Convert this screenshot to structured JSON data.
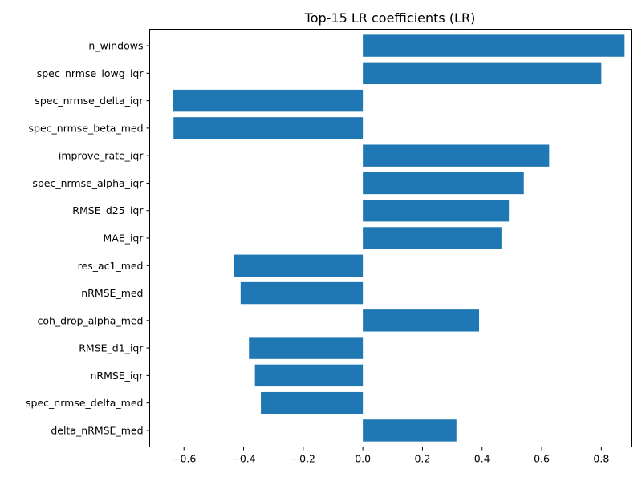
{
  "chart_data": {
    "type": "bar",
    "orientation": "horizontal",
    "title": "Top-15 LR coefficients (LR)",
    "xlabel": "",
    "ylabel": "",
    "categories": [
      "n_windows",
      "spec_nrmse_lowg_iqr",
      "spec_nrmse_delta_iqr",
      "spec_nrmse_beta_med",
      "improve_rate_iqr",
      "spec_nrmse_alpha_iqr",
      "RMSE_d25_iqr",
      "MAE_iqr",
      "res_ac1_med",
      "nRMSE_med",
      "coh_drop_alpha_med",
      "RMSE_d1_iqr",
      "nRMSE_iqr",
      "spec_nrmse_delta_med",
      "delta_nRMSE_med"
    ],
    "values": [
      0.878,
      0.8,
      -0.638,
      -0.635,
      0.625,
      0.54,
      0.49,
      0.465,
      -0.432,
      -0.41,
      0.39,
      -0.382,
      -0.362,
      -0.342,
      0.314
    ],
    "xlim": [
      -0.715,
      0.9
    ],
    "xticks": [
      -0.6,
      -0.4,
      -0.2,
      0.0,
      0.2,
      0.4,
      0.6,
      0.8
    ],
    "xtick_labels": [
      "−0.6",
      "−0.4",
      "−0.2",
      "0.0",
      "0.2",
      "0.4",
      "0.6",
      "0.8"
    ],
    "grid": false,
    "bar_color": "#1f77b4"
  }
}
